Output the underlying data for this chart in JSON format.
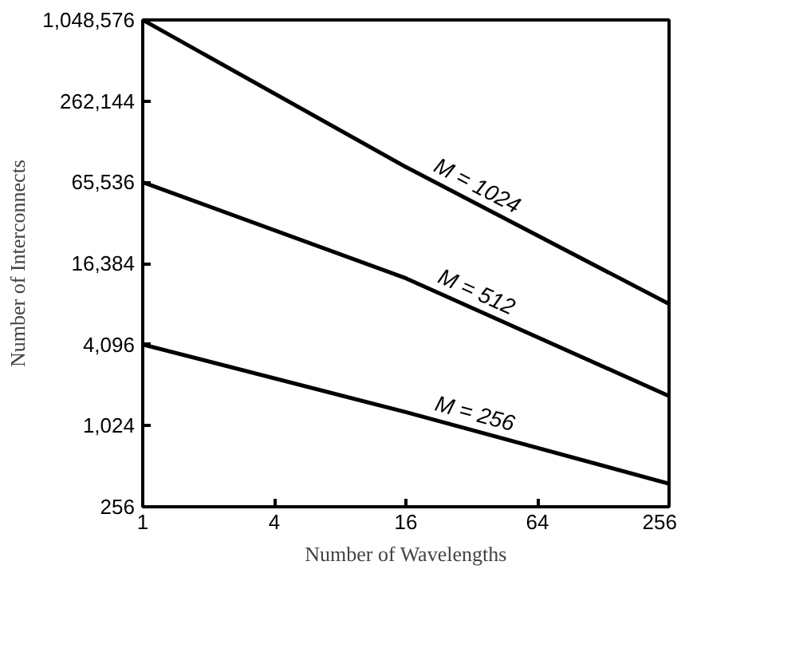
{
  "chart_data": {
    "type": "line",
    "log": "xy",
    "xlabel": "Number of Wavelengths",
    "ylabel": "Number of Interconnects",
    "x": [
      1,
      16,
      256
    ],
    "series": [
      {
        "name": "M = 1024",
        "color": "#000000",
        "values": [
          1048576,
          85000,
          8192
        ]
      },
      {
        "name": "M = 512",
        "color": "#000000",
        "values": [
          65536,
          12700,
          1700
        ]
      },
      {
        "name": "M = 256",
        "color": "#000000",
        "values": [
          4096,
          1290,
          380
        ]
      }
    ],
    "xlim": [
      1,
      256
    ],
    "xticks": [
      1,
      4,
      16,
      64,
      256
    ],
    "ylim": [
      256,
      1048576
    ],
    "yticks": [
      {
        "value": 256,
        "label": "256"
      },
      {
        "value": 1024,
        "label": "1,024"
      },
      {
        "value": 4096,
        "label": "4,096"
      },
      {
        "value": 16384,
        "label": "16,384"
      },
      {
        "value": 65536,
        "label": "65,536"
      },
      {
        "value": 262144,
        "label": "262,144"
      },
      {
        "value": 1048576,
        "label": "1,048,576"
      }
    ],
    "grid": false,
    "marker": "none",
    "line_style": "solid"
  }
}
